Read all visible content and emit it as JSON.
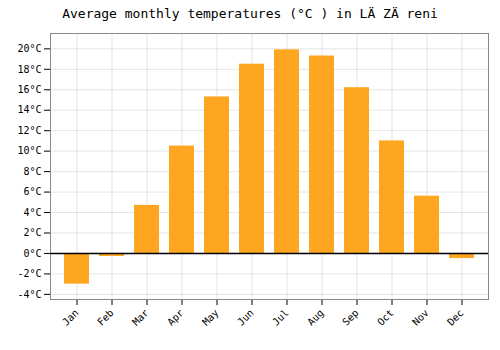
{
  "chart_data": {
    "type": "bar",
    "title": "Average monthly temperatures (°C ) in LÄ ZÄ reni",
    "categories": [
      "Jan",
      "Feb",
      "Mar",
      "Apr",
      "May",
      "Jun",
      "Jul",
      "Aug",
      "Sep",
      "Oct",
      "Nov",
      "Dec"
    ],
    "values": [
      -3.0,
      -0.3,
      4.7,
      10.5,
      15.3,
      18.5,
      19.9,
      19.3,
      16.2,
      11.0,
      5.6,
      -0.5
    ],
    "color": "#FFA620",
    "ylim": [
      -4.5,
      21.5
    ],
    "yticks": [
      {
        "value": -4,
        "label": "-4°C"
      },
      {
        "value": -2,
        "label": "-2°C"
      },
      {
        "value": 0,
        "label": "0°C"
      },
      {
        "value": 2,
        "label": "2°C"
      },
      {
        "value": 4,
        "label": "4°C"
      },
      {
        "value": 6,
        "label": "6°C"
      },
      {
        "value": 8,
        "label": "8°C"
      },
      {
        "value": 10,
        "label": "10°C"
      },
      {
        "value": 12,
        "label": "12°C"
      },
      {
        "value": 14,
        "label": "14°C"
      },
      {
        "value": 16,
        "label": "16°C"
      },
      {
        "value": 18,
        "label": "18°C"
      },
      {
        "value": 20,
        "label": "20°C"
      }
    ],
    "grid": true
  }
}
